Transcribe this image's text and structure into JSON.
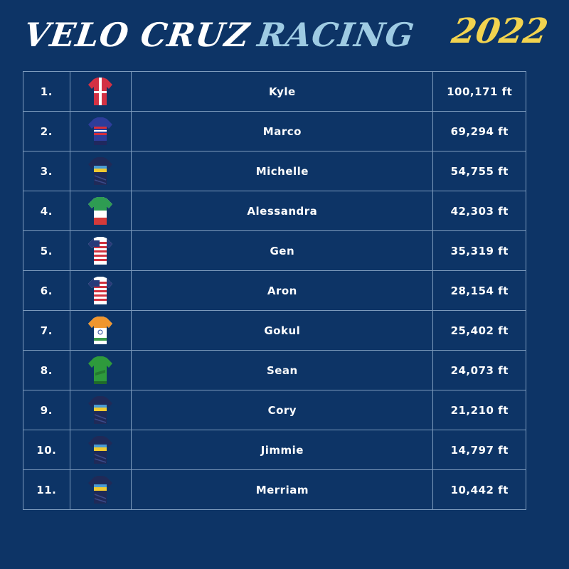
{
  "header": {
    "title_part1": "VELO CRUZ",
    "title_part2": "RACING",
    "year": "2022"
  },
  "riders": [
    {
      "rank": "1.",
      "name": "Kyle",
      "distance": "100,171 ft",
      "jersey": "red-white-icon"
    },
    {
      "rank": "2.",
      "name": "Marco",
      "distance": "69,294 ft",
      "jersey": "blue-red-icon"
    },
    {
      "rank": "3.",
      "name": "Michelle",
      "distance": "54,755 ft",
      "jersey": "navy-gold-icon"
    },
    {
      "rank": "4.",
      "name": "Alessandra",
      "distance": "42,303 ft",
      "jersey": "italy-icon"
    },
    {
      "rank": "5.",
      "name": "Gen",
      "distance": "35,319 ft",
      "jersey": "usa-flag-icon"
    },
    {
      "rank": "6.",
      "name": "Aron",
      "distance": "28,154 ft",
      "jersey": "usa-flag-icon"
    },
    {
      "rank": "7.",
      "name": "Gokul",
      "distance": "25,402 ft",
      "jersey": "india-icon"
    },
    {
      "rank": "8.",
      "name": "Sean",
      "distance": "24,073 ft",
      "jersey": "green-icon"
    },
    {
      "rank": "9.",
      "name": "Cory",
      "distance": "21,210 ft",
      "jersey": "navy-gold-icon"
    },
    {
      "rank": "10.",
      "name": "Jimmie",
      "distance": "14,797 ft",
      "jersey": "navy-gold-icon"
    },
    {
      "rank": "11.",
      "name": "Merriam",
      "distance": "10,442 ft",
      "jersey": "navy-gold-icon"
    }
  ],
  "colors": {
    "background": "#0d3466",
    "title_accent": "#9ecbe3",
    "year": "#f2d34f",
    "grid": "#7d9bbd"
  }
}
